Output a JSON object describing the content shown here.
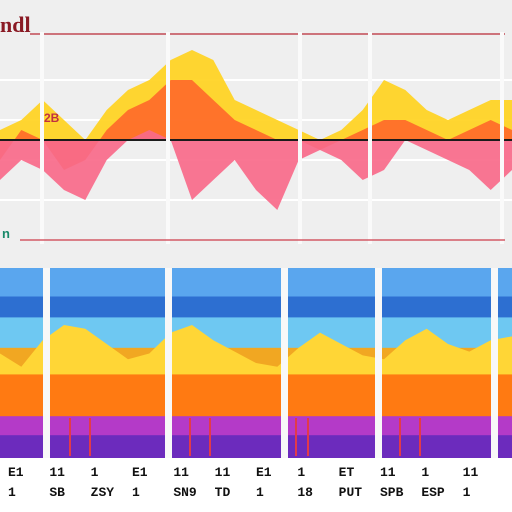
{
  "chart_data": [
    {
      "type": "area",
      "title": "ndl",
      "corner_label": "n",
      "x": [
        0,
        1,
        2,
        3,
        4,
        5,
        6,
        7,
        8,
        9,
        10,
        11,
        12,
        13,
        14,
        15,
        16,
        17,
        18,
        19,
        20,
        21,
        22,
        23,
        24
      ],
      "ylim": [
        -10,
        10
      ],
      "grid": true,
      "series": [
        {
          "color": "#ffd21f",
          "values": [
            1,
            2,
            4,
            2,
            0,
            3,
            5,
            6,
            8,
            9,
            8,
            4,
            3,
            2,
            1,
            0,
            1,
            3,
            6,
            5,
            3,
            2,
            3,
            4,
            4
          ]
        },
        {
          "color": "#ff6a2a",
          "values": [
            -2,
            1,
            0,
            -3,
            -2,
            1,
            3,
            4,
            6,
            6,
            4,
            2,
            1,
            0,
            0,
            -1,
            0,
            1,
            2,
            2,
            1,
            0,
            1,
            2,
            1
          ]
        },
        {
          "color": "#f86a8a",
          "values": [
            -4,
            -2,
            -3,
            -5,
            -6,
            -2,
            0,
            1,
            0,
            -6,
            -4,
            -2,
            -5,
            -7,
            -2,
            -1,
            -2,
            -4,
            -3,
            0,
            -1,
            -2,
            -3,
            -5,
            -3
          ]
        }
      ],
      "annotation": "2B"
    },
    {
      "type": "area",
      "x": [
        0,
        1,
        2,
        3,
        4,
        5,
        6,
        7,
        8,
        9,
        10,
        11,
        12,
        13,
        14,
        15,
        16,
        17,
        18,
        19,
        20,
        21,
        22,
        23,
        24
      ],
      "ylim": [
        0,
        100
      ],
      "bands": [
        {
          "color": "#5aa6ee",
          "value": 100
        },
        {
          "color": "#2d6fd1",
          "value": 85
        },
        {
          "color": "#6ec8f2",
          "value": 74
        },
        {
          "color": "#f1a722",
          "value": 58
        },
        {
          "color": "#ff7a12",
          "value": 44
        },
        {
          "color": "#b43ac8",
          "value": 22
        },
        {
          "color": "#6c2bbd",
          "value": 12
        }
      ],
      "series": [
        {
          "color": "#ffd636",
          "values": [
            55,
            48,
            62,
            70,
            68,
            60,
            52,
            55,
            66,
            70,
            62,
            56,
            50,
            48,
            58,
            66,
            60,
            54,
            52,
            62,
            68,
            60,
            56,
            62,
            64
          ]
        }
      ],
      "tick_labels": [
        "E1",
        "11",
        "1",
        "E1",
        "11",
        "11",
        "E1",
        "1",
        "ET",
        "11",
        "1",
        "11"
      ],
      "sub_labels": [
        "1",
        "SB",
        "ZSY",
        "1",
        "SN9",
        "TD",
        "1",
        "18",
        "PUT",
        "SPB",
        "ESP",
        "1"
      ]
    }
  ]
}
